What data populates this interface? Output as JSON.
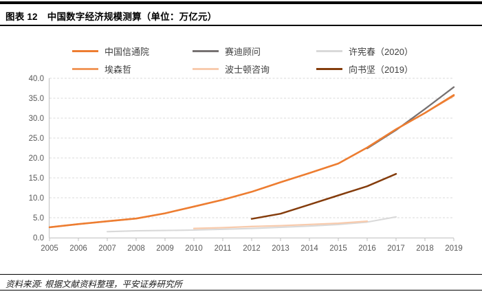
{
  "header": {
    "title_prefix": "图表 12",
    "title_text": "中国数字经济规模测算（单位：万亿元）"
  },
  "footer": {
    "source": "资料来源: 根据文献资料整理，平安证券研究所"
  },
  "chart_data": {
    "type": "line",
    "title": "中国数字经济规模测算",
    "unit": "万亿元",
    "x": [
      2005,
      2006,
      2007,
      2008,
      2009,
      2010,
      2011,
      2012,
      2013,
      2014,
      2015,
      2016,
      2017,
      2018,
      2019
    ],
    "xlabel": "",
    "ylabel": "",
    "ylim": [
      0,
      40
    ],
    "ytick_step": 5,
    "grid": "horizontal-dashed",
    "legend_position": "top",
    "series": [
      {
        "name": "中国信通院",
        "color": "#ED7D31",
        "line_width": 2.6,
        "points": [
          [
            2005,
            2.6
          ],
          [
            2006,
            3.4
          ],
          [
            2007,
            4.1
          ],
          [
            2008,
            4.8
          ],
          [
            2009,
            6.1
          ],
          [
            2010,
            7.8
          ],
          [
            2011,
            9.5
          ],
          [
            2012,
            11.5
          ],
          [
            2013,
            13.9
          ],
          [
            2014,
            16.2
          ],
          [
            2015,
            18.6
          ],
          [
            2016,
            22.6
          ],
          [
            2017,
            27.2
          ],
          [
            2018,
            31.3
          ],
          [
            2019,
            35.8
          ]
        ]
      },
      {
        "name": "赛迪顾问",
        "color": "#767171",
        "line_width": 2.3,
        "points": [
          [
            2016,
            22.4
          ],
          [
            2017,
            27.0
          ],
          [
            2018,
            32.3
          ],
          [
            2019,
            37.8
          ]
        ]
      },
      {
        "name": "许宪春（2020）",
        "color": "#D9D9D9",
        "line_width": 2.1,
        "points": [
          [
            2007,
            1.5
          ],
          [
            2008,
            1.7
          ],
          [
            2009,
            1.8
          ],
          [
            2010,
            1.9
          ],
          [
            2011,
            2.1
          ],
          [
            2012,
            2.3
          ],
          [
            2013,
            2.6
          ],
          [
            2014,
            2.9
          ],
          [
            2015,
            3.3
          ],
          [
            2016,
            3.9
          ],
          [
            2017,
            5.2
          ]
        ]
      },
      {
        "name": "埃森哲",
        "color": "#F1975A",
        "line_width": 2.3,
        "points": [
          [
            2005,
            2.6
          ],
          [
            2006,
            3.4
          ],
          [
            2007,
            4.1
          ],
          [
            2008,
            4.8
          ],
          [
            2009,
            6.1
          ],
          [
            2010,
            7.8
          ],
          [
            2011,
            9.5
          ],
          [
            2012,
            11.5
          ],
          [
            2013,
            13.9
          ],
          [
            2014,
            16.2
          ],
          [
            2015,
            18.6
          ],
          [
            2016,
            22.6
          ],
          [
            2017,
            27.2
          ],
          [
            2018,
            31.3
          ],
          [
            2019,
            35.6
          ]
        ]
      },
      {
        "name": "波士顿咨询",
        "color": "#F8CBAD",
        "line_width": 2.3,
        "points": [
          [
            2010,
            2.3
          ],
          [
            2011,
            2.5
          ],
          [
            2012,
            2.8
          ],
          [
            2013,
            3.0
          ],
          [
            2014,
            3.3
          ],
          [
            2015,
            3.6
          ],
          [
            2016,
            4.1
          ]
        ]
      },
      {
        "name": "向书坚（2019）",
        "color": "#843C0C",
        "line_width": 2.5,
        "points": [
          [
            2012,
            4.7
          ],
          [
            2013,
            6.0
          ],
          [
            2014,
            8.3
          ],
          [
            2015,
            10.6
          ],
          [
            2016,
            12.9
          ],
          [
            2017,
            16.0
          ]
        ]
      }
    ]
  }
}
